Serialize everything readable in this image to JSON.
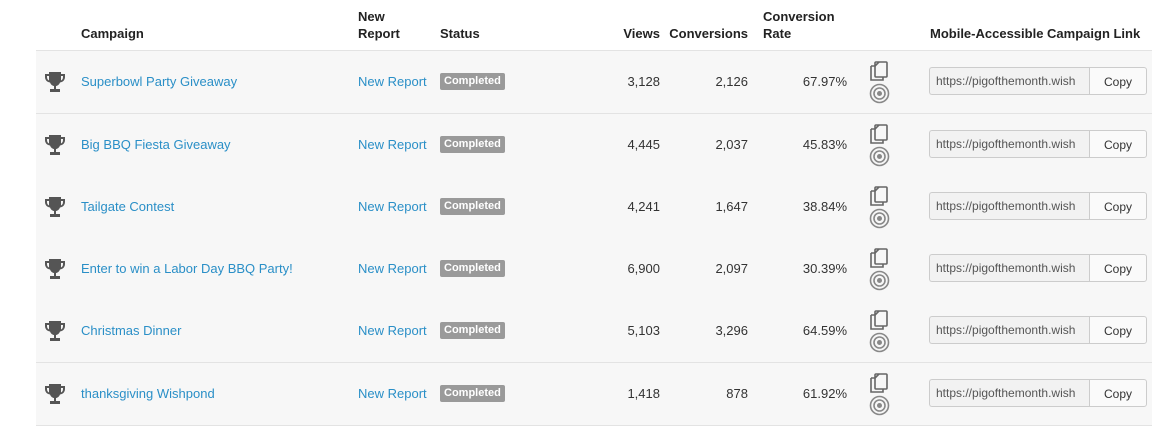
{
  "headers": {
    "campaign": "Campaign",
    "new_report": "New Report",
    "status": "Status",
    "views": "Views",
    "conversions": "Conversions",
    "conversion_rate": "Conversion Rate",
    "link": "Mobile-Accessible Campaign Link"
  },
  "colors": {
    "link": "#2a8fc7",
    "badge": "#9a9a9a",
    "row_bg": "#f7f7f7"
  },
  "icons": {
    "trophy": "trophy-icon",
    "copy": "duplicate-icon",
    "target": "target-icon"
  },
  "rows": [
    {
      "campaign": "Superbowl Party Giveaway",
      "report": "New Report",
      "status": "Completed",
      "views": "3,128",
      "conversions": "2,126",
      "rate": "67.97%",
      "url": "https://pigofthemonth.wish",
      "copy": "Copy"
    },
    {
      "campaign": "Big BBQ Fiesta Giveaway",
      "report": "New Report",
      "status": "Completed",
      "views": "4,445",
      "conversions": "2,037",
      "rate": "45.83%",
      "url": "https://pigofthemonth.wish",
      "copy": "Copy"
    },
    {
      "campaign": "Tailgate Contest",
      "report": "New Report",
      "status": "Completed",
      "views": "4,241",
      "conversions": "1,647",
      "rate": "38.84%",
      "url": "https://pigofthemonth.wish",
      "copy": "Copy"
    },
    {
      "campaign": "Enter to win a Labor Day BBQ Party!",
      "report": "New Report",
      "status": "Completed",
      "views": "6,900",
      "conversions": "2,097",
      "rate": "30.39%",
      "url": "https://pigofthemonth.wish",
      "copy": "Copy"
    },
    {
      "campaign": "Christmas Dinner",
      "report": "New Report",
      "status": "Completed",
      "views": "5,103",
      "conversions": "3,296",
      "rate": "64.59%",
      "url": "https://pigofthemonth.wish",
      "copy": "Copy"
    },
    {
      "campaign": "thanksgiving Wishpond",
      "report": "New Report",
      "status": "Completed",
      "views": "1,418",
      "conversions": "878",
      "rate": "61.92%",
      "url": "https://pigofthemonth.wish",
      "copy": "Copy"
    }
  ]
}
